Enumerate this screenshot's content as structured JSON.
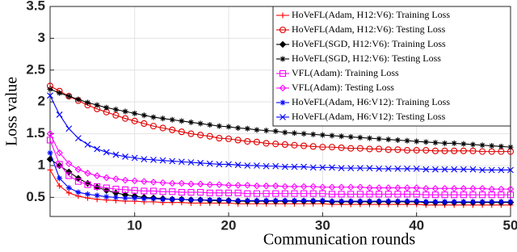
{
  "chart_data": {
    "type": "line",
    "xlabel": "Communication rounds",
    "ylabel": "Loss value",
    "x": [
      1,
      2,
      3,
      4,
      5,
      6,
      7,
      8,
      9,
      10,
      11,
      12,
      13,
      14,
      15,
      16,
      17,
      18,
      19,
      20,
      21,
      22,
      23,
      24,
      25,
      26,
      27,
      28,
      29,
      30,
      31,
      32,
      33,
      34,
      35,
      36,
      37,
      38,
      39,
      40,
      41,
      42,
      43,
      44,
      45,
      46,
      47,
      48,
      49,
      50
    ],
    "xlim": [
      1,
      50
    ],
    "xticks": [
      10,
      20,
      30,
      40,
      50
    ],
    "ylim": [
      0.2,
      3.5
    ],
    "yticks": [
      0.5,
      1,
      1.5,
      2,
      2.5,
      3,
      3.5
    ],
    "grid": true,
    "legend": "upper right",
    "series": [
      {
        "name": "HoVeFL(Adam, H12:V6): Training Loss",
        "color": "#ff0000",
        "marker": "plus",
        "values": [
          0.93,
          0.68,
          0.57,
          0.52,
          0.49,
          0.47,
          0.46,
          0.45,
          0.44,
          0.44,
          0.43,
          0.43,
          0.42,
          0.42,
          0.42,
          0.41,
          0.41,
          0.41,
          0.41,
          0.41,
          0.4,
          0.4,
          0.4,
          0.4,
          0.4,
          0.4,
          0.4,
          0.4,
          0.4,
          0.4,
          0.39,
          0.39,
          0.39,
          0.39,
          0.39,
          0.39,
          0.39,
          0.39,
          0.39,
          0.39,
          0.38,
          0.38,
          0.38,
          0.38,
          0.38,
          0.38,
          0.38,
          0.38,
          0.38,
          0.38
        ]
      },
      {
        "name": "HoVeFL(Adam, H12:V6): Testing Loss",
        "color": "#e00000",
        "marker": "circle",
        "values": [
          2.25,
          2.17,
          2.09,
          2.02,
          1.95,
          1.89,
          1.84,
          1.79,
          1.74,
          1.7,
          1.66,
          1.62,
          1.59,
          1.56,
          1.53,
          1.5,
          1.48,
          1.46,
          1.43,
          1.42,
          1.4,
          1.38,
          1.37,
          1.35,
          1.34,
          1.33,
          1.32,
          1.31,
          1.3,
          1.29,
          1.29,
          1.28,
          1.27,
          1.27,
          1.26,
          1.26,
          1.25,
          1.25,
          1.24,
          1.24,
          1.24,
          1.23,
          1.23,
          1.23,
          1.23,
          1.23,
          1.22,
          1.22,
          1.22,
          1.22
        ]
      },
      {
        "name": "HoVeFL(SGD, H12:V6): Training Loss",
        "color": "#000000",
        "marker": "diamond",
        "values": [
          1.1,
          1.0,
          0.9,
          0.8,
          0.72,
          0.66,
          0.61,
          0.57,
          0.54,
          0.52,
          0.5,
          0.49,
          0.48,
          0.47,
          0.47,
          0.46,
          0.46,
          0.45,
          0.45,
          0.45,
          0.44,
          0.44,
          0.44,
          0.44,
          0.44,
          0.44,
          0.44,
          0.44,
          0.44,
          0.44,
          0.43,
          0.43,
          0.43,
          0.43,
          0.43,
          0.43,
          0.43,
          0.43,
          0.43,
          0.43,
          0.42,
          0.42,
          0.42,
          0.42,
          0.42,
          0.42,
          0.42,
          0.42,
          0.42,
          0.42
        ]
      },
      {
        "name": "HoVeFL(SGD, H12:V6): Testing Loss",
        "color": "#000000",
        "marker": "star",
        "values": [
          2.2,
          2.14,
          2.09,
          2.04,
          1.99,
          1.95,
          1.91,
          1.88,
          1.85,
          1.82,
          1.79,
          1.76,
          1.74,
          1.72,
          1.7,
          1.68,
          1.66,
          1.64,
          1.62,
          1.61,
          1.59,
          1.58,
          1.56,
          1.55,
          1.54,
          1.52,
          1.51,
          1.5,
          1.49,
          1.48,
          1.47,
          1.46,
          1.45,
          1.44,
          1.43,
          1.42,
          1.41,
          1.4,
          1.39,
          1.38,
          1.37,
          1.36,
          1.35,
          1.35,
          1.34,
          1.33,
          1.32,
          1.31,
          1.3,
          1.29
        ]
      },
      {
        "name": "VFL(Adam): Training Loss",
        "color": "#ff00ff",
        "marker": "square",
        "values": [
          1.4,
          1.02,
          0.84,
          0.75,
          0.7,
          0.67,
          0.65,
          0.63,
          0.62,
          0.61,
          0.6,
          0.6,
          0.59,
          0.59,
          0.58,
          0.58,
          0.58,
          0.57,
          0.57,
          0.57,
          0.57,
          0.56,
          0.56,
          0.56,
          0.56,
          0.56,
          0.56,
          0.56,
          0.56,
          0.56,
          0.55,
          0.55,
          0.55,
          0.55,
          0.55,
          0.55,
          0.55,
          0.55,
          0.55,
          0.55,
          0.54,
          0.54,
          0.54,
          0.54,
          0.54,
          0.54,
          0.54,
          0.54,
          0.54,
          0.54
        ]
      },
      {
        "name": "VFL(Adam): Testing Loss",
        "color": "#ff00ff",
        "marker": "diamond",
        "values": [
          1.5,
          1.2,
          1.03,
          0.94,
          0.88,
          0.84,
          0.81,
          0.79,
          0.77,
          0.76,
          0.75,
          0.74,
          0.73,
          0.72,
          0.72,
          0.71,
          0.71,
          0.7,
          0.7,
          0.69,
          0.69,
          0.69,
          0.68,
          0.68,
          0.68,
          0.67,
          0.67,
          0.67,
          0.67,
          0.66,
          0.66,
          0.66,
          0.66,
          0.66,
          0.65,
          0.65,
          0.65,
          0.65,
          0.65,
          0.65,
          0.64,
          0.64,
          0.64,
          0.64,
          0.64,
          0.64,
          0.64,
          0.63,
          0.63,
          0.63
        ]
      },
      {
        "name": "HoVeFL(Adam, H6:V12): Training Loss",
        "color": "#0000ff",
        "marker": "star",
        "values": [
          1.2,
          0.8,
          0.65,
          0.58,
          0.55,
          0.53,
          0.51,
          0.5,
          0.49,
          0.49,
          0.48,
          0.48,
          0.47,
          0.47,
          0.47,
          0.46,
          0.46,
          0.46,
          0.46,
          0.45,
          0.45,
          0.45,
          0.45,
          0.45,
          0.45,
          0.45,
          0.45,
          0.45,
          0.45,
          0.45,
          0.44,
          0.44,
          0.44,
          0.44,
          0.44,
          0.44,
          0.44,
          0.44,
          0.44,
          0.44,
          0.43,
          0.43,
          0.43,
          0.43,
          0.43,
          0.43,
          0.43,
          0.43,
          0.43,
          0.43
        ]
      },
      {
        "name": "HoVeFL(Adam, H6:V12): Testing Loss",
        "color": "#0000ff",
        "marker": "x",
        "values": [
          2.1,
          1.8,
          1.58,
          1.43,
          1.33,
          1.26,
          1.21,
          1.17,
          1.14,
          1.12,
          1.1,
          1.09,
          1.08,
          1.07,
          1.06,
          1.05,
          1.04,
          1.03,
          1.02,
          1.02,
          1.01,
          1.0,
          1.0,
          0.99,
          0.99,
          0.98,
          0.98,
          0.98,
          0.97,
          0.97,
          0.97,
          0.96,
          0.96,
          0.96,
          0.96,
          0.95,
          0.95,
          0.95,
          0.95,
          0.95,
          0.94,
          0.94,
          0.94,
          0.94,
          0.94,
          0.94,
          0.93,
          0.93,
          0.93,
          0.93
        ]
      }
    ]
  }
}
